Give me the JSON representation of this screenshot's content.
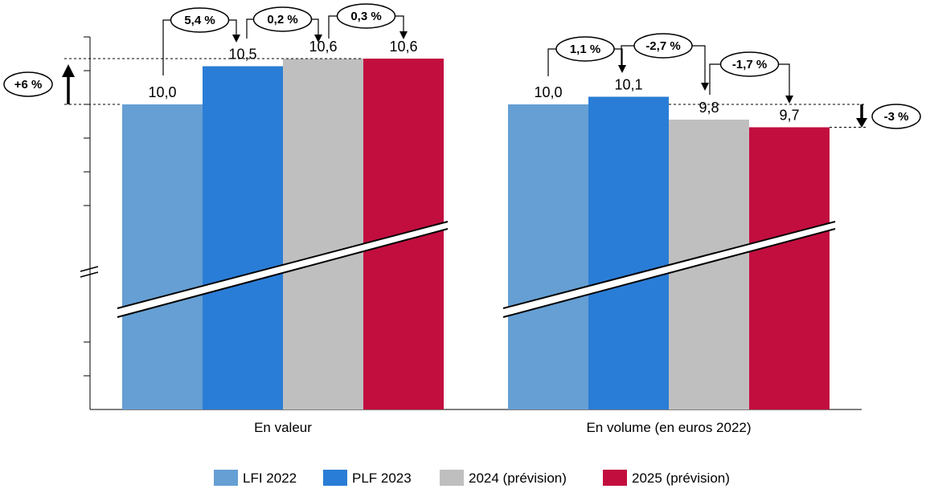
{
  "chart_data": {
    "type": "bar",
    "categories": [
      "En valeur",
      "En volume (en euros 2022)"
    ],
    "series": [
      {
        "name": "LFI 2022",
        "values": [
          10.0,
          10.0
        ],
        "labels": [
          "10,0",
          "10,0"
        ],
        "color": "#659fd3"
      },
      {
        "name": "PLF 2023",
        "values": [
          10.5,
          10.1
        ],
        "labels": [
          "10,5",
          "10,1"
        ],
        "color": "#2a7dd6"
      },
      {
        "name": "2024 (prévision)",
        "values": [
          10.6,
          9.8
        ],
        "labels": [
          "10,6",
          "9,8"
        ],
        "color": "#bfbfbf"
      },
      {
        "name": "2025 (prévision)",
        "values": [
          10.6,
          9.7
        ],
        "labels": [
          "10,6",
          "9,7"
        ],
        "color": "#c20e3f"
      }
    ],
    "axis_break": true,
    "grid": false,
    "legend_position": "bottom",
    "annotations": {
      "valeur_steps": [
        "5,4 %",
        "0,2 %",
        "0,3 %"
      ],
      "volume_steps": [
        "1,1 %",
        "-2,7 %",
        "-1,7 %"
      ],
      "valeur_total": "+6 %",
      "volume_total": "-3 %"
    }
  }
}
